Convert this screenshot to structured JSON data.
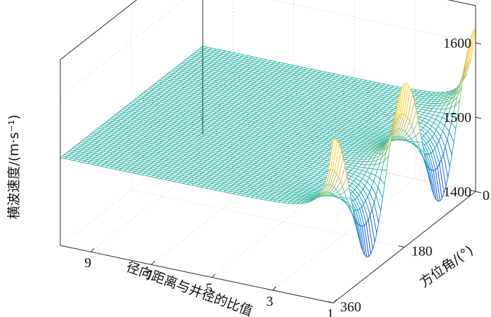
{
  "chart_data": {
    "type": "surface",
    "title": "",
    "xlabel": "径向距离与井径的比值",
    "ylabel": "方位角/(°)",
    "zlabel": "横波速度/(m·s⁻¹)",
    "x_ticks": [
      "1",
      "3",
      "5",
      "7",
      "9"
    ],
    "y_ticks": [
      "0",
      "180",
      "360"
    ],
    "z_ticks": [
      "1400",
      "1500",
      "1600"
    ],
    "xlim": [
      1,
      10
    ],
    "ylim": [
      0,
      360
    ],
    "zlim": [
      1400,
      1650
    ],
    "colormap": "parula",
    "grid": true,
    "surface": {
      "far_field_velocity": 1518,
      "peak_velocity_at_wall": 1620,
      "trough_velocity_at_wall": 1425,
      "peak_azimuths": [
        0,
        180,
        360
      ],
      "trough_azimuths": [
        90,
        270
      ]
    }
  }
}
